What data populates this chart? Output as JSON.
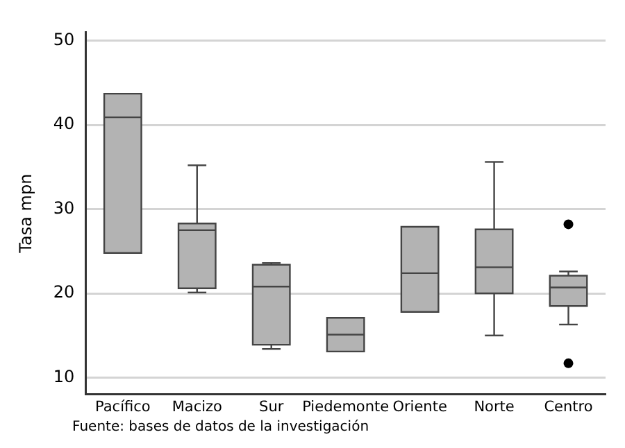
{
  "chart_data": {
    "type": "box",
    "ylabel": "Tasa mpn",
    "categories": [
      "Pacífico",
      "Macizo",
      "Sur",
      "Piedemonte",
      "Oriente",
      "Norte",
      "Centro"
    ],
    "color": "#b3b3b3",
    "boxes": [
      {
        "low": 24.8,
        "q1": 24.8,
        "median": 40.9,
        "q3": 43.7,
        "high": 43.7
      },
      {
        "low": 20.1,
        "q1": 20.6,
        "median": 27.5,
        "q3": 28.3,
        "high": 35.2
      },
      {
        "low": 13.4,
        "q1": 13.9,
        "median": 20.8,
        "q3": 23.4,
        "high": 23.6
      },
      {
        "low": 13.1,
        "q1": 13.1,
        "median": 15.1,
        "q3": 17.1,
        "high": 17.1
      },
      {
        "low": 17.8,
        "q1": 17.8,
        "median": 22.4,
        "q3": 27.9,
        "high": 27.9
      },
      {
        "low": 15.0,
        "q1": 20.0,
        "median": 23.1,
        "q3": 27.6,
        "high": 35.6
      },
      {
        "low": 16.3,
        "q1": 18.5,
        "median": 20.7,
        "q3": 22.1,
        "high": 22.6,
        "outliers": [
          28.2,
          11.7
        ]
      }
    ],
    "ylim": [
      8,
      51
    ],
    "yticks": [
      10,
      20,
      30,
      40,
      50
    ],
    "grid": "y",
    "annotations": [
      "Fuente: bases de datos de la investigación"
    ]
  }
}
